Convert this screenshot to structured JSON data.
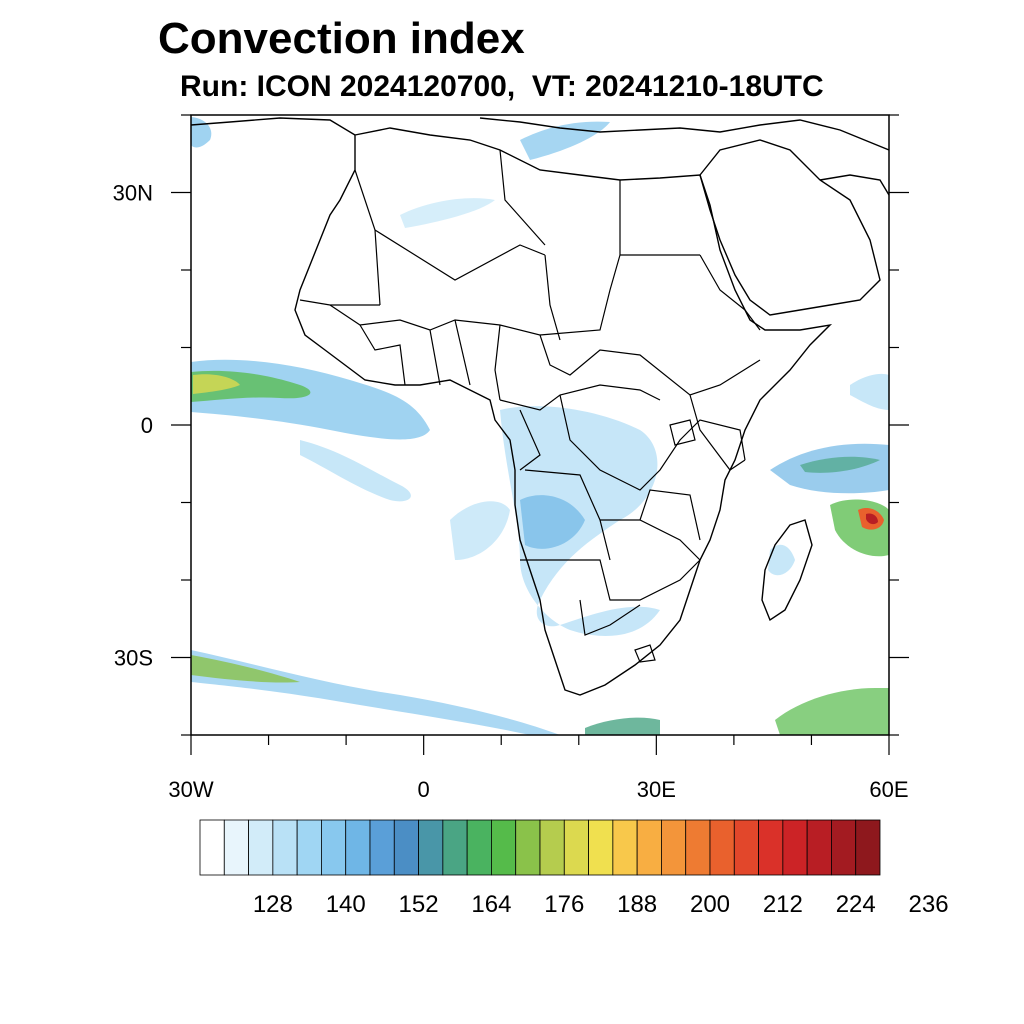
{
  "title": "Convection index",
  "subtitle": "Run: ICON 2024120700,  VT: 20241210-18UTC",
  "map": {
    "region": "Africa",
    "lon_range": [
      -30,
      60
    ],
    "lat_range": [
      -40,
      40
    ],
    "x_ticks": [
      {
        "value": -30,
        "label": "30W"
      },
      {
        "value": 0,
        "label": "0"
      },
      {
        "value": 30,
        "label": "30E"
      },
      {
        "value": 60,
        "label": "60E"
      }
    ],
    "y_ticks": [
      {
        "value": 30,
        "label": "30N"
      },
      {
        "value": 0,
        "label": "0"
      },
      {
        "value": -30,
        "label": "30S"
      }
    ]
  },
  "colorbar": {
    "colors": [
      "#ffffff",
      "#e8f5fc",
      "#d2ecf9",
      "#b9e1f6",
      "#a0d6f3",
      "#88c8ee",
      "#6fb6e6",
      "#5a9fd8",
      "#4b8ec5",
      "#4996a8",
      "#4aa584",
      "#4ab360",
      "#55bb4a",
      "#8ac24a",
      "#b5cc4e",
      "#dcd94f",
      "#f0e04f",
      "#f8c84b",
      "#f8ae42",
      "#f3953a",
      "#ee7b32",
      "#e9612d",
      "#e2472b",
      "#da3129",
      "#cc2326",
      "#b81e24",
      "#a31b21",
      "#8e181d"
    ],
    "labels": [
      "128",
      "140",
      "152",
      "164",
      "176",
      "188",
      "200",
      "212",
      "224",
      "236"
    ]
  }
}
